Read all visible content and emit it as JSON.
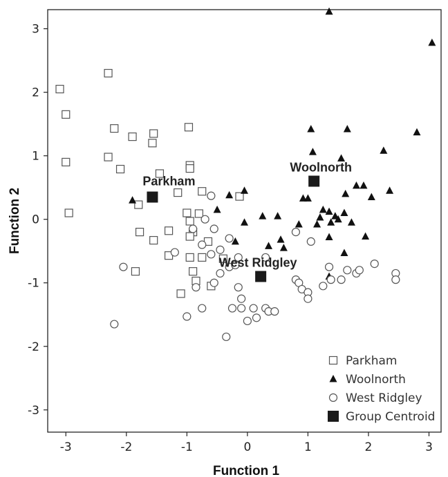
{
  "chart_data": {
    "type": "scatter",
    "xlabel": "Function 1",
    "ylabel": "Function 2",
    "xlim": [
      -3.3,
      3.2
    ],
    "ylim": [
      -3.35,
      3.3
    ],
    "xticks": [
      -3,
      -2,
      -1,
      0,
      1,
      2,
      3
    ],
    "yticks": [
      -3,
      -2,
      -1,
      0,
      1,
      2,
      3
    ],
    "xtick_labels": [
      "-3",
      "-2",
      "-1",
      "0",
      "1",
      "2",
      "3"
    ],
    "ytick_labels": [
      "-3",
      "-2",
      "-1",
      "0",
      "1",
      "2",
      "3"
    ],
    "grid": false,
    "legend_position": "bottom-right",
    "legend": [
      "Parkham",
      "Woolnorth",
      "West Ridgley",
      "Group Centroid"
    ],
    "series": [
      {
        "name": "Parkham",
        "marker": "square-open",
        "points": [
          [
            -3.1,
            2.05
          ],
          [
            -2.3,
            2.3
          ],
          [
            -3.0,
            1.65
          ],
          [
            -3.0,
            0.9
          ],
          [
            -2.95,
            0.1
          ],
          [
            -2.2,
            1.43
          ],
          [
            -2.3,
            0.98
          ],
          [
            -2.1,
            0.79
          ],
          [
            -1.9,
            1.3
          ],
          [
            -1.55,
            1.35
          ],
          [
            -1.57,
            1.2
          ],
          [
            -0.97,
            1.45
          ],
          [
            -0.95,
            0.85
          ],
          [
            -0.95,
            0.8
          ],
          [
            -1.45,
            0.72
          ],
          [
            -1.15,
            0.42
          ],
          [
            -0.75,
            0.44
          ],
          [
            -1.8,
            0.23
          ],
          [
            -1.0,
            0.1
          ],
          [
            -0.8,
            0.09
          ],
          [
            -0.95,
            -0.03
          ],
          [
            -1.3,
            -0.18
          ],
          [
            -1.78,
            -0.2
          ],
          [
            -1.55,
            -0.33
          ],
          [
            -0.9,
            -0.2
          ],
          [
            -0.95,
            -0.27
          ],
          [
            -0.65,
            -0.35
          ],
          [
            -1.3,
            -0.57
          ],
          [
            -0.95,
            -0.6
          ],
          [
            -0.75,
            -0.6
          ],
          [
            -0.4,
            -0.62
          ],
          [
            -1.85,
            -0.82
          ],
          [
            -0.9,
            -0.82
          ],
          [
            -0.85,
            -0.97
          ],
          [
            -0.6,
            -1.05
          ],
          [
            -1.1,
            -1.17
          ],
          [
            -0.13,
            0.36
          ]
        ]
      },
      {
        "name": "Woolnorth",
        "marker": "triangle-filled",
        "points": [
          [
            1.35,
            3.27
          ],
          [
            3.05,
            2.78
          ],
          [
            1.05,
            1.42
          ],
          [
            1.65,
            1.42
          ],
          [
            2.8,
            1.37
          ],
          [
            1.08,
            1.06
          ],
          [
            1.55,
            0.96
          ],
          [
            2.25,
            1.08
          ],
          [
            1.8,
            0.53
          ],
          [
            1.92,
            0.53
          ],
          [
            0.92,
            0.33
          ],
          [
            1.0,
            0.33
          ],
          [
            2.35,
            0.45
          ],
          [
            2.05,
            0.35
          ],
          [
            1.62,
            0.4
          ],
          [
            1.25,
            0.15
          ],
          [
            1.35,
            0.12
          ],
          [
            1.45,
            0.05
          ],
          [
            1.6,
            0.1
          ],
          [
            1.2,
            0.03
          ],
          [
            1.72,
            -0.05
          ],
          [
            1.38,
            -0.05
          ],
          [
            1.5,
            0.0
          ],
          [
            0.85,
            -0.08
          ],
          [
            1.15,
            -0.08
          ],
          [
            -0.05,
            0.45
          ],
          [
            -0.3,
            0.38
          ],
          [
            -1.9,
            0.3
          ],
          [
            -0.5,
            0.15
          ],
          [
            0.25,
            0.05
          ],
          [
            0.5,
            0.05
          ],
          [
            -0.05,
            -0.05
          ],
          [
            0.55,
            -0.32
          ],
          [
            -0.2,
            -0.35
          ],
          [
            0.35,
            -0.42
          ],
          [
            1.35,
            -0.28
          ],
          [
            1.95,
            -0.27
          ],
          [
            1.6,
            -0.53
          ],
          [
            0.6,
            -0.45
          ],
          [
            1.35,
            -0.9
          ]
        ]
      },
      {
        "name": "West Ridgley",
        "marker": "circle-open",
        "points": [
          [
            -2.2,
            -1.65
          ],
          [
            -2.05,
            -0.75
          ],
          [
            -0.6,
            0.37
          ],
          [
            -0.7,
            0.0
          ],
          [
            -0.9,
            -0.15
          ],
          [
            -0.55,
            -0.15
          ],
          [
            -0.75,
            -0.4
          ],
          [
            -1.2,
            -0.52
          ],
          [
            -0.45,
            -0.48
          ],
          [
            -0.3,
            -0.3
          ],
          [
            -0.6,
            -0.55
          ],
          [
            -0.3,
            -0.75
          ],
          [
            -0.2,
            -0.72
          ],
          [
            -0.15,
            -0.6
          ],
          [
            -0.45,
            -0.85
          ],
          [
            -0.55,
            -1.0
          ],
          [
            -0.85,
            -1.07
          ],
          [
            -0.15,
            -1.07
          ],
          [
            -0.1,
            -1.25
          ],
          [
            -0.1,
            -1.4
          ],
          [
            -0.25,
            -1.4
          ],
          [
            0.1,
            -1.4
          ],
          [
            0.3,
            -1.4
          ],
          [
            0.35,
            -1.45
          ],
          [
            0.15,
            -1.55
          ],
          [
            0.45,
            -1.45
          ],
          [
            0.0,
            -1.6
          ],
          [
            -0.75,
            -1.4
          ],
          [
            -1.0,
            -1.53
          ],
          [
            -0.35,
            -1.85
          ],
          [
            0.8,
            -0.2
          ],
          [
            1.05,
            -0.35
          ],
          [
            0.8,
            -0.95
          ],
          [
            0.85,
            -1.0
          ],
          [
            0.9,
            -1.1
          ],
          [
            1.0,
            -1.15
          ],
          [
            1.0,
            -1.25
          ],
          [
            1.25,
            -1.05
          ],
          [
            1.38,
            -0.95
          ],
          [
            1.55,
            -0.95
          ],
          [
            1.8,
            -0.85
          ],
          [
            1.85,
            -0.8
          ],
          [
            1.35,
            -0.75
          ],
          [
            1.65,
            -0.8
          ],
          [
            2.1,
            -0.7
          ],
          [
            2.45,
            -0.85
          ],
          [
            2.45,
            -0.95
          ],
          [
            0.3,
            -0.6
          ]
        ]
      },
      {
        "name": "Group Centroid",
        "marker": "square-filled",
        "points": [
          [
            -1.57,
            0.35
          ],
          [
            1.1,
            0.6
          ],
          [
            0.22,
            -0.9
          ]
        ],
        "labels": [
          "Parkham",
          "Woolnorth",
          "West Ridgley"
        ]
      }
    ]
  }
}
